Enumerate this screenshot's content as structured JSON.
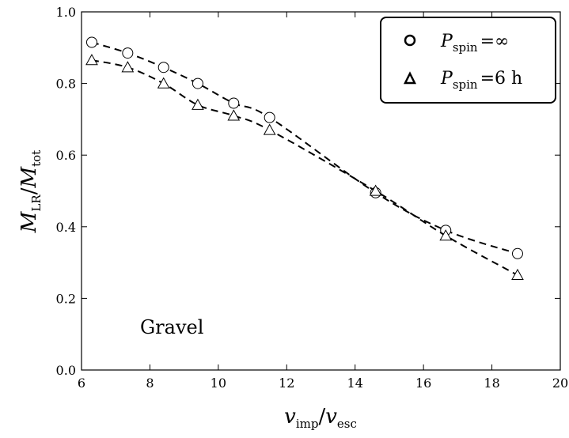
{
  "chart_data": {
    "type": "line",
    "title": "",
    "xlabel": {
      "main": "v",
      "sub": "imp",
      "sep": "/",
      "main2": "v",
      "sub2": "esc"
    },
    "ylabel": {
      "main": "M",
      "sub": "LR",
      "sep": "/",
      "main2": "M",
      "sub2": "tot"
    },
    "xlim": [
      6,
      20
    ],
    "ylim": [
      0.0,
      1.0
    ],
    "xticks": [
      "6",
      "8",
      "10",
      "12",
      "14",
      "16",
      "18",
      "20"
    ],
    "yticks": [
      "0.0",
      "0.2",
      "0.4",
      "0.6",
      "0.8",
      "1.0"
    ],
    "grid": false,
    "legend_position": "top-right",
    "annotation": "Gravel",
    "series": [
      {
        "legend": {
          "main": "P",
          "sub": "spin",
          "eq": "=",
          "value": "∞"
        },
        "marker": "circle",
        "line_style": "dashed",
        "x": [
          6.3,
          7.35,
          8.4,
          9.4,
          10.45,
          11.5,
          14.6,
          16.65,
          18.75
        ],
        "y": [
          0.915,
          0.885,
          0.845,
          0.8,
          0.745,
          0.705,
          0.495,
          0.39,
          0.325
        ]
      },
      {
        "legend": {
          "main": "P",
          "sub": "spin",
          "eq": "=",
          "value": "6 h"
        },
        "marker": "triangle",
        "line_style": "dashed",
        "x": [
          6.3,
          7.35,
          8.4,
          9.4,
          10.45,
          11.5,
          14.6,
          16.65,
          18.75
        ],
        "y": [
          0.865,
          0.845,
          0.8,
          0.74,
          0.71,
          0.67,
          0.5,
          0.375,
          0.265
        ]
      }
    ]
  }
}
